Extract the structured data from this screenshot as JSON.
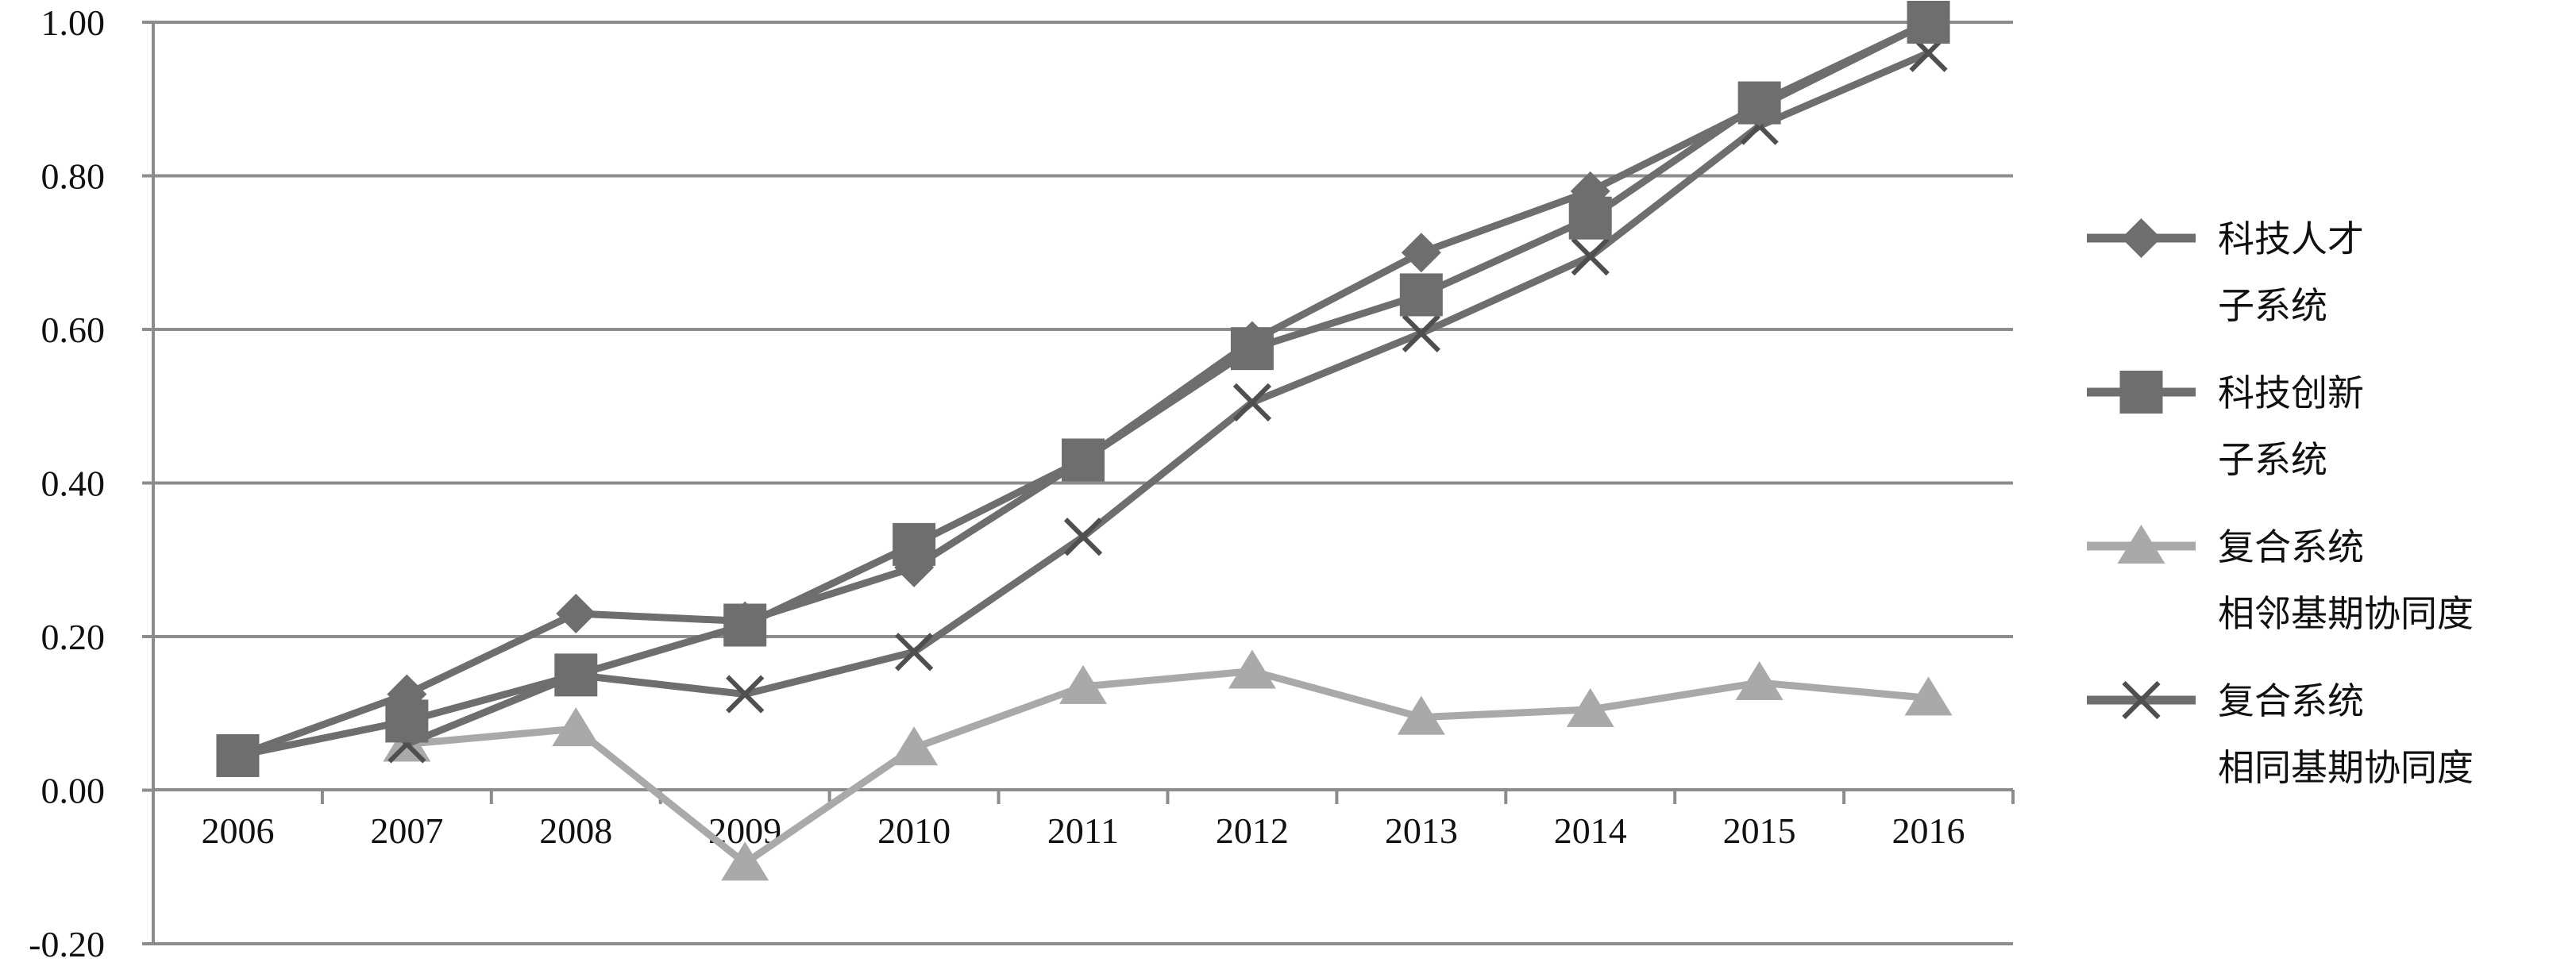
{
  "chart_data": {
    "type": "line",
    "categories": [
      "2006",
      "2007",
      "2008",
      "2009",
      "2010",
      "2011",
      "2012",
      "2013",
      "2014",
      "2015",
      "2016"
    ],
    "ylim": [
      -0.2,
      1.0
    ],
    "yticks": [
      -0.2,
      0.0,
      0.2,
      0.4,
      0.6,
      0.8,
      1.0
    ],
    "ytick_labels": [
      "-0.20",
      "0.00",
      "0.20",
      "0.40",
      "0.60",
      "0.80",
      "1.00"
    ],
    "grid": true,
    "legend_position": "right",
    "series": [
      {
        "name": "科技人才子系统",
        "legend_lines": [
          "科技人才",
          "子系统"
        ],
        "marker": "diamond",
        "color": "#6e6e6e",
        "values": [
          0.045,
          0.125,
          0.23,
          0.22,
          0.29,
          0.43,
          0.585,
          0.7,
          0.78,
          0.89,
          1.0
        ]
      },
      {
        "name": "科技创新子系统",
        "legend_lines": [
          "科技创新",
          "子系统"
        ],
        "marker": "square",
        "color": "#6e6e6e",
        "values": [
          0.045,
          0.09,
          0.15,
          0.215,
          0.32,
          0.43,
          0.575,
          0.645,
          0.745,
          0.895,
          1.0
        ]
      },
      {
        "name": "复合系统相邻基期协同度",
        "legend_lines": [
          "复合系统",
          "相邻基期协同度"
        ],
        "marker": "triangle",
        "color": "#a9a9a9",
        "values": [
          null,
          0.06,
          0.08,
          -0.095,
          0.055,
          0.135,
          0.155,
          0.095,
          0.105,
          0.14,
          0.12
        ]
      },
      {
        "name": "复合系统相同基期协同度",
        "legend_lines": [
          "复合系统",
          "相同基期协同度"
        ],
        "marker": "x",
        "color": "#6e6e6e",
        "values": [
          null,
          0.06,
          0.15,
          0.125,
          0.18,
          0.33,
          0.505,
          0.595,
          0.695,
          0.865,
          0.96
        ]
      }
    ]
  }
}
